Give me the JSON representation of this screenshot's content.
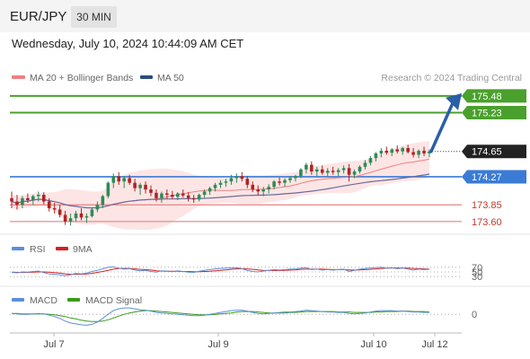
{
  "header": {
    "symbol": "EUR/JPY",
    "timeframe": "30 MIN",
    "datetime": "Wednesday, July 10, 2024 10:44:09 AM CET"
  },
  "legend": {
    "ma20_label": "MA 20 + Bollinger Bands",
    "ma50_label": "MA 50",
    "attribution": "Research © 2024 Trading Central"
  },
  "colors": {
    "up_candle": "#2e8b57",
    "down_candle": "#b22222",
    "target_line": "#4aa02c",
    "pivot_line": "#3a7bd5",
    "support_line": "#e88080",
    "support_text": "#c0392b",
    "ma20": "#f08080",
    "ma50": "#6a6a9a",
    "bollinger_fill": "#fde2e2",
    "rsi": "#5b8fd9",
    "rsi_ma": "#d42020",
    "macd": "#5b8fd9",
    "macd_signal": "#3a9a1a",
    "arrow": "#2a5ea8",
    "price_tag": "#222222"
  },
  "chart_data": {
    "type": "candlestick",
    "x_tick_labels": [
      "Jul 7",
      "Jul 9",
      "Jul 10",
      "Jul 12"
    ],
    "ohlc": [
      [
        173.95,
        174.05,
        173.8,
        173.9
      ],
      [
        173.9,
        174.0,
        173.78,
        173.85
      ],
      [
        173.85,
        173.98,
        173.8,
        173.95
      ],
      [
        173.95,
        174.02,
        173.88,
        173.92
      ],
      [
        173.92,
        174.0,
        173.85,
        173.98
      ],
      [
        173.98,
        174.05,
        173.9,
        174.0
      ],
      [
        174.0,
        174.04,
        173.86,
        173.9
      ],
      [
        173.9,
        173.95,
        173.75,
        173.8
      ],
      [
        173.8,
        173.88,
        173.72,
        173.78
      ],
      [
        173.78,
        173.85,
        173.66,
        173.7
      ],
      [
        173.7,
        173.76,
        173.55,
        173.6
      ],
      [
        173.6,
        173.72,
        173.54,
        173.65
      ],
      [
        173.65,
        173.76,
        173.6,
        173.72
      ],
      [
        173.72,
        173.8,
        173.62,
        173.66
      ],
      [
        173.66,
        173.72,
        173.58,
        173.68
      ],
      [
        173.68,
        173.8,
        173.66,
        173.78
      ],
      [
        173.78,
        173.9,
        173.74,
        173.85
      ],
      [
        173.85,
        174.0,
        173.8,
        173.98
      ],
      [
        173.98,
        174.2,
        173.95,
        174.18
      ],
      [
        174.18,
        174.32,
        174.1,
        174.28
      ],
      [
        174.28,
        174.34,
        174.15,
        174.2
      ],
      [
        174.2,
        174.28,
        174.1,
        174.25
      ],
      [
        174.25,
        174.3,
        174.15,
        174.18
      ],
      [
        174.18,
        174.24,
        174.05,
        174.1
      ],
      [
        174.1,
        174.18,
        174.0,
        174.15
      ],
      [
        174.15,
        174.2,
        174.02,
        174.08
      ],
      [
        174.08,
        174.14,
        173.98,
        174.03
      ],
      [
        174.03,
        174.08,
        173.9,
        173.95
      ],
      [
        173.95,
        174.05,
        173.88,
        174.02
      ],
      [
        174.02,
        174.08,
        173.94,
        174.0
      ],
      [
        174.0,
        174.06,
        173.94,
        173.97
      ],
      [
        173.97,
        174.04,
        173.92,
        174.02
      ],
      [
        174.02,
        174.08,
        173.96,
        173.99
      ],
      [
        173.99,
        174.04,
        173.9,
        173.95
      ],
      [
        173.95,
        174.0,
        173.88,
        173.93
      ],
      [
        173.93,
        174.02,
        173.9,
        174.0
      ],
      [
        174.0,
        174.08,
        173.96,
        174.05
      ],
      [
        174.05,
        174.12,
        174.0,
        174.1
      ],
      [
        174.1,
        174.18,
        174.05,
        174.15
      ],
      [
        174.15,
        174.22,
        174.1,
        174.18
      ],
      [
        174.18,
        174.24,
        174.12,
        174.2
      ],
      [
        174.2,
        174.3,
        174.15,
        174.25
      ],
      [
        174.25,
        174.32,
        174.18,
        174.28
      ],
      [
        174.28,
        174.34,
        174.2,
        174.24
      ],
      [
        174.24,
        174.28,
        174.1,
        174.15
      ],
      [
        174.15,
        174.2,
        174.04,
        174.08
      ],
      [
        174.08,
        174.14,
        174.0,
        174.05
      ],
      [
        174.05,
        174.12,
        173.98,
        174.08
      ],
      [
        174.08,
        174.16,
        174.02,
        174.12
      ],
      [
        174.12,
        174.22,
        174.08,
        174.2
      ],
      [
        174.2,
        174.26,
        174.14,
        174.18
      ],
      [
        174.18,
        174.25,
        174.12,
        174.22
      ],
      [
        174.22,
        174.28,
        174.18,
        174.25
      ],
      [
        174.25,
        174.3,
        174.2,
        174.28
      ],
      [
        174.28,
        174.4,
        174.25,
        174.38
      ],
      [
        174.38,
        174.48,
        174.32,
        174.45
      ],
      [
        174.45,
        174.5,
        174.3,
        174.35
      ],
      [
        174.35,
        174.42,
        174.28,
        174.38
      ],
      [
        174.38,
        174.44,
        174.3,
        174.33
      ],
      [
        174.33,
        174.4,
        174.28,
        174.36
      ],
      [
        174.36,
        174.42,
        174.3,
        174.34
      ],
      [
        174.34,
        174.4,
        174.28,
        174.37
      ],
      [
        174.37,
        174.44,
        174.32,
        174.4
      ],
      [
        174.4,
        174.46,
        174.2,
        174.3
      ],
      [
        174.3,
        174.38,
        174.25,
        174.35
      ],
      [
        174.35,
        174.44,
        174.32,
        174.42
      ],
      [
        174.42,
        174.52,
        174.38,
        174.48
      ],
      [
        174.48,
        174.58,
        174.44,
        174.55
      ],
      [
        174.55,
        174.64,
        174.5,
        174.62
      ],
      [
        174.62,
        174.7,
        174.56,
        174.66
      ],
      [
        174.66,
        174.72,
        174.6,
        174.63
      ],
      [
        174.63,
        174.7,
        174.58,
        174.68
      ],
      [
        174.68,
        174.74,
        174.62,
        174.65
      ],
      [
        174.65,
        174.72,
        174.6,
        174.7
      ],
      [
        174.7,
        174.75,
        174.62,
        174.64
      ],
      [
        174.64,
        174.7,
        174.56,
        174.6
      ],
      [
        174.6,
        174.68,
        174.55,
        174.66
      ],
      [
        174.66,
        174.72,
        174.58,
        174.62
      ],
      [
        174.62,
        174.68,
        174.56,
        174.65
      ]
    ],
    "ylim": [
      173.45,
      175.6
    ],
    "levels": [
      {
        "label": "175.48",
        "value": 175.48,
        "kind": "target"
      },
      {
        "label": "175.23",
        "value": 175.23,
        "kind": "target"
      },
      {
        "label": "174.65",
        "value": 174.65,
        "kind": "last"
      },
      {
        "label": "174.27",
        "value": 174.27,
        "kind": "pivot"
      },
      {
        "label": "173.85",
        "value": 173.85,
        "kind": "support"
      },
      {
        "label": "173.60",
        "value": 173.6,
        "kind": "support"
      }
    ],
    "forecast_arrow": {
      "from": 174.65,
      "to": 175.48
    },
    "rsi": {
      "legend": [
        "RSI",
        "9MA"
      ],
      "levels": [
        "70",
        "50",
        "30"
      ],
      "ylim": [
        0,
        100
      ],
      "values": [
        48,
        46,
        50,
        49,
        52,
        54,
        47,
        42,
        40,
        38,
        34,
        38,
        44,
        41,
        45,
        52,
        57,
        63,
        70,
        72,
        66,
        62,
        64,
        58,
        55,
        57,
        52,
        49,
        55,
        54,
        51,
        55,
        52,
        49,
        48,
        53,
        57,
        60,
        63,
        65,
        66,
        67,
        68,
        64,
        56,
        52,
        50,
        54,
        57,
        60,
        58,
        60,
        62,
        63,
        66,
        68,
        60,
        62,
        58,
        60,
        58,
        60,
        62,
        52,
        57,
        62,
        65,
        67,
        69,
        70,
        66,
        68,
        64,
        67,
        62,
        58,
        62,
        60,
        61
      ],
      "ma_values": [
        49,
        48,
        48,
        48,
        49,
        50,
        50,
        49,
        47,
        45,
        42,
        40,
        40,
        40,
        41,
        44,
        48,
        52,
        57,
        62,
        65,
        65,
        65,
        63,
        61,
        60,
        58,
        55,
        54,
        53,
        53,
        53,
        52,
        52,
        51,
        51,
        52,
        53,
        55,
        57,
        59,
        61,
        63,
        64,
        63,
        61,
        59,
        57,
        56,
        56,
        56,
        57,
        58,
        59,
        61,
        62,
        62,
        62,
        62,
        61,
        60,
        60,
        60,
        59,
        58,
        59,
        60,
        61,
        63,
        65,
        66,
        67,
        67,
        67,
        66,
        65,
        64,
        63,
        62
      ]
    },
    "macd": {
      "legend": [
        "MACD",
        "MACD Signal"
      ],
      "zero_label": "0",
      "ylim": [
        -0.35,
        0.2
      ],
      "macd_values": [
        0.02,
        0.01,
        0.0,
        0.0,
        0.01,
        0.02,
        0.01,
        -0.02,
        -0.05,
        -0.09,
        -0.15,
        -0.19,
        -0.21,
        -0.23,
        -0.24,
        -0.22,
        -0.17,
        -0.09,
        0.0,
        0.08,
        0.12,
        0.14,
        0.14,
        0.12,
        0.1,
        0.09,
        0.07,
        0.04,
        0.03,
        0.02,
        0.01,
        0.0,
        -0.01,
        -0.02,
        -0.03,
        -0.03,
        -0.02,
        0.0,
        0.02,
        0.04,
        0.06,
        0.08,
        0.09,
        0.09,
        0.07,
        0.04,
        0.02,
        0.01,
        0.02,
        0.03,
        0.04,
        0.05,
        0.05,
        0.06,
        0.07,
        0.09,
        0.08,
        0.07,
        0.06,
        0.05,
        0.05,
        0.04,
        0.04,
        0.02,
        0.01,
        0.02,
        0.03,
        0.05,
        0.07,
        0.08,
        0.08,
        0.08,
        0.07,
        0.07,
        0.06,
        0.05,
        0.05,
        0.04,
        0.04
      ],
      "signal_values": [
        0.02,
        0.02,
        0.01,
        0.01,
        0.01,
        0.01,
        0.01,
        0.0,
        -0.01,
        -0.03,
        -0.05,
        -0.08,
        -0.1,
        -0.13,
        -0.15,
        -0.16,
        -0.16,
        -0.15,
        -0.12,
        -0.08,
        -0.04,
        0.0,
        0.03,
        0.05,
        0.07,
        0.08,
        0.08,
        0.07,
        0.06,
        0.05,
        0.04,
        0.03,
        0.02,
        0.01,
        0.0,
        -0.01,
        -0.01,
        -0.01,
        0.0,
        0.01,
        0.02,
        0.03,
        0.05,
        0.06,
        0.06,
        0.06,
        0.05,
        0.04,
        0.03,
        0.03,
        0.03,
        0.03,
        0.04,
        0.04,
        0.05,
        0.06,
        0.06,
        0.06,
        0.06,
        0.06,
        0.06,
        0.05,
        0.05,
        0.05,
        0.04,
        0.04,
        0.04,
        0.04,
        0.05,
        0.05,
        0.06,
        0.06,
        0.06,
        0.07,
        0.07,
        0.06,
        0.06,
        0.06,
        0.05
      ]
    }
  }
}
